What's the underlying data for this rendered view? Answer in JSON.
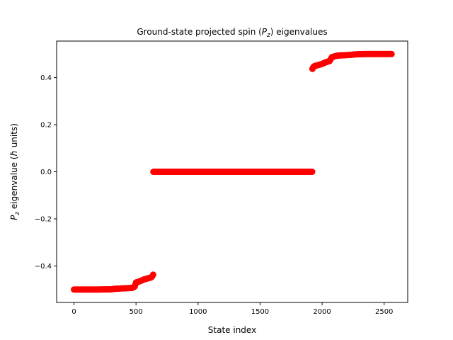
{
  "chart_data": {
    "type": "scatter",
    "title_prefix": "Ground-state projected spin (",
    "title_var": "P",
    "title_sub": "z",
    "title_suffix": ") eigenvalues",
    "xlabel": "State index",
    "ylabel_var": "P",
    "ylabel_sub": "z",
    "ylabel_rest": " eigenvalue (",
    "ylabel_hbar": "ħ",
    "ylabel_units": " units)",
    "xlim": [
      -140,
      2690
    ],
    "ylim": [
      -0.555,
      0.555
    ],
    "xticks": [
      0,
      500,
      1000,
      1500,
      2000,
      2500
    ],
    "xtick_labels": [
      "0",
      "500",
      "1000",
      "1500",
      "2000",
      "2500"
    ],
    "yticks": [
      -0.4,
      -0.2,
      0.0,
      0.2,
      0.4
    ],
    "ytick_labels": [
      "−0.4",
      "−0.2",
      "0.0",
      "0.2",
      "0.4"
    ],
    "marker_color": "#ff0000",
    "series": [
      {
        "x": [
          0,
          100,
          200,
          300,
          330,
          360,
          400,
          440,
          470,
          480,
          490,
          500,
          520,
          540,
          560,
          580,
          600,
          620,
          630,
          638
        ],
        "y": [
          -0.5,
          -0.5,
          -0.5,
          -0.499,
          -0.497,
          -0.496,
          -0.495,
          -0.494,
          -0.493,
          -0.49,
          -0.487,
          -0.47,
          -0.467,
          -0.463,
          -0.458,
          -0.455,
          -0.452,
          -0.449,
          -0.445,
          -0.437
        ]
      },
      {
        "x": [
          640,
          800,
          1000,
          1200,
          1400,
          1600,
          1800,
          1920
        ],
        "y": [
          0.0,
          0.0,
          0.0,
          0.0,
          0.0,
          0.0,
          0.0,
          0.0
        ]
      },
      {
        "x": [
          1922,
          1930,
          1940,
          1960,
          1980,
          2000,
          2020,
          2040,
          2060,
          2080,
          2100,
          2120,
          2140,
          2180,
          2220,
          2240,
          2280,
          2350,
          2450,
          2560
        ],
        "y": [
          0.437,
          0.445,
          0.449,
          0.452,
          0.455,
          0.458,
          0.463,
          0.467,
          0.47,
          0.487,
          0.49,
          0.493,
          0.494,
          0.495,
          0.496,
          0.497,
          0.499,
          0.5,
          0.5,
          0.5
        ]
      }
    ]
  }
}
